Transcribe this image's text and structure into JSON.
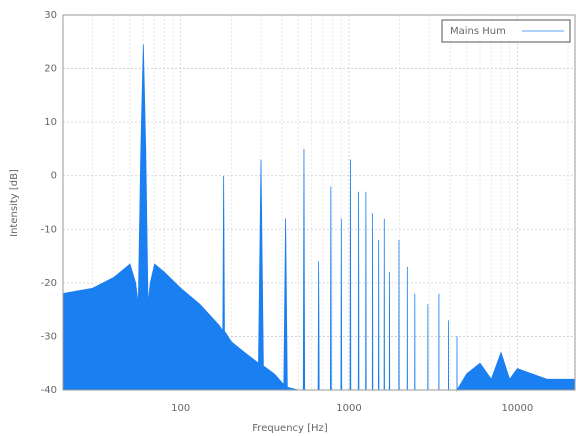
{
  "chart_data": {
    "type": "area",
    "xlabel": "Frequency [Hz]",
    "ylabel": "Intensity [dB]",
    "xlog": true,
    "grid": true,
    "legend": "upper right",
    "xlim": [
      20,
      22000
    ],
    "ylim": [
      -40,
      30
    ],
    "xticks": [
      100,
      1000,
      10000
    ],
    "yticks": [
      -40,
      -30,
      -20,
      -10,
      0,
      10,
      20,
      30
    ],
    "x": [
      20,
      30,
      40,
      50,
      54,
      56,
      58,
      60,
      62,
      64,
      66,
      70,
      80,
      100,
      130,
      170,
      178,
      180,
      182,
      200,
      240,
      290,
      300,
      310,
      360,
      410,
      420,
      430,
      500,
      535,
      540,
      545,
      655,
      660,
      665,
      775,
      780,
      785,
      895,
      900,
      905,
      1015,
      1020,
      1025,
      1135,
      1140,
      1145,
      1255,
      1260,
      1265,
      1375,
      1380,
      1385,
      1495,
      1500,
      1505,
      1615,
      1620,
      1625,
      1735,
      1740,
      1745,
      1975,
      1980,
      1985,
      2215,
      2220,
      2225,
      2455,
      2460,
      2465,
      2935,
      2940,
      2945,
      3415,
      3420,
      3425,
      3895,
      3900,
      3905,
      4375,
      4380,
      4385,
      5000,
      6000,
      7000,
      8000,
      9000,
      10000,
      15000,
      22000
    ],
    "series": [
      {
        "name": "Mains Hum",
        "color": "#1a7ff0",
        "values": [
          -22,
          -21,
          -19,
          -16.5,
          -20,
          -24,
          5,
          24.5,
          5,
          -24,
          -20,
          -16.5,
          -18,
          -21,
          -24,
          -28,
          -29,
          0,
          -29,
          -31,
          -33,
          -35,
          3,
          -35.5,
          -37,
          -39,
          -8,
          -39.5,
          -40,
          -40,
          5,
          -40,
          -40,
          -16,
          -40,
          -40,
          -2,
          -40,
          -40,
          -8,
          -40,
          -40,
          3,
          -40,
          -40,
          -3,
          -40,
          -40,
          -3,
          -40,
          -40,
          -7,
          -40,
          -40,
          -12,
          -40,
          -40,
          -8,
          -40,
          -40,
          -18,
          -40,
          -40,
          -12,
          -40,
          -40,
          -17,
          -40,
          -40,
          -22,
          -40,
          -40,
          -24,
          -40,
          -40,
          -22,
          -40,
          -40,
          -27,
          -40,
          -40,
          -30,
          -40,
          -37,
          -35,
          -38,
          -33,
          -38,
          -36,
          -38,
          -38
        ]
      }
    ]
  }
}
